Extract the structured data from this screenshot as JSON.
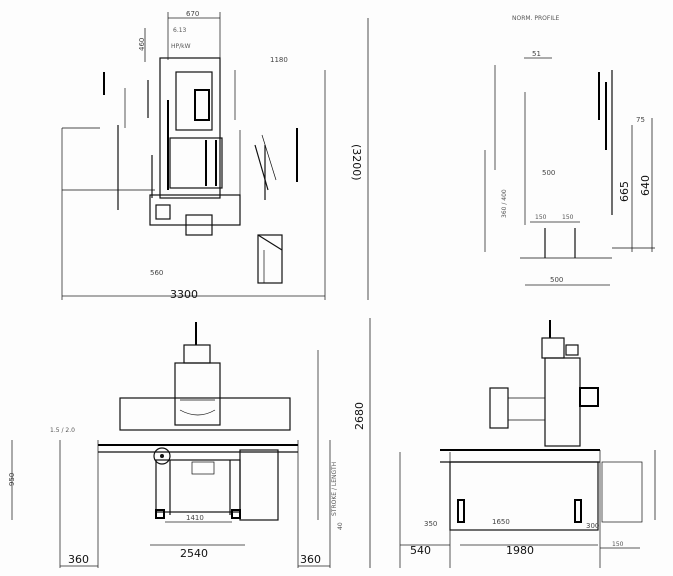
{
  "top_view": {
    "dim_width": "3300",
    "dim_height": "(3200)",
    "dim_top": "670",
    "dim_side": "460",
    "dim_mid": "1180",
    "label_small": "560"
  },
  "side_view_top": {
    "caption": "NORM. PROFILE",
    "dim_top": "51",
    "dim_mid": "500",
    "dim_a": "665",
    "dim_b": "640",
    "dim_c": "150",
    "dim_d": "150",
    "dim_e": "500",
    "label_vertical": "360 / 400"
  },
  "front_view": {
    "dim_total_height": "2680",
    "dim_base": "2540",
    "dim_inner": "1410",
    "dim_left": "360",
    "dim_right": "360",
    "dim_small": "40",
    "label_left_height": "950",
    "label_vertical": "STROKE / LENGTH"
  },
  "side_view_bottom": {
    "dim_left": "540",
    "dim_base": "1980",
    "dim_inner": "1650",
    "dim_a": "350",
    "dim_b": "300",
    "dim_c": "150"
  }
}
